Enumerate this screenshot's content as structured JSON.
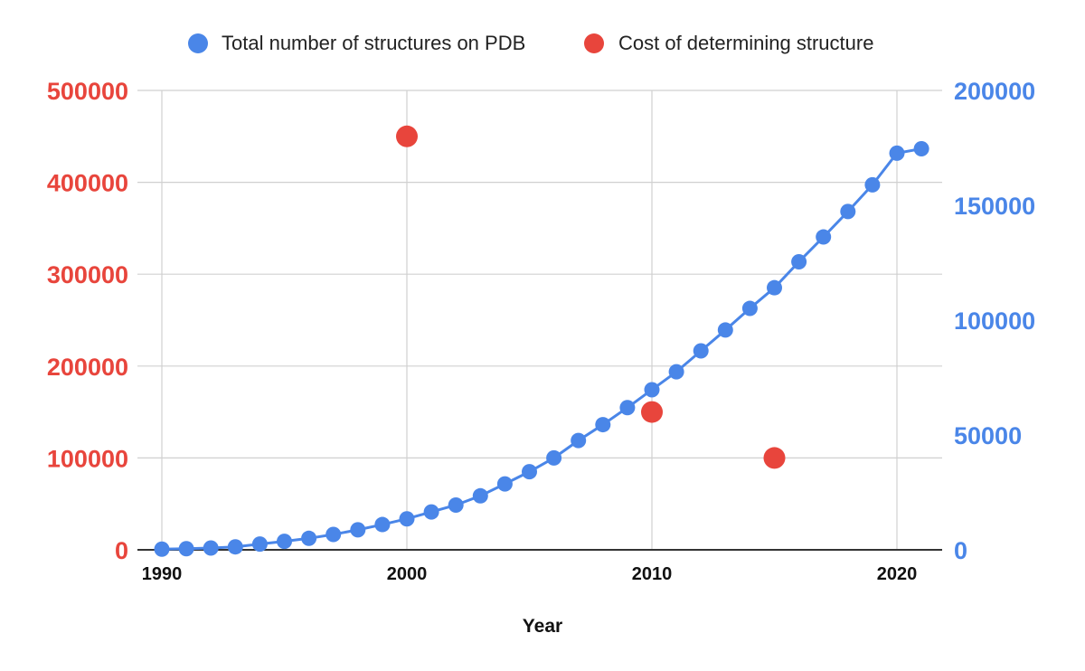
{
  "chart_data": {
    "type": "scatter",
    "xlabel": "Year",
    "legend_position": "top",
    "grid": true,
    "x_axis": {
      "range": [
        1990,
        2022
      ],
      "ticks": [
        "1990",
        "2000",
        "2010",
        "2020"
      ],
      "tick_values": [
        1990,
        2000,
        2010,
        2020
      ]
    },
    "y_axis_left": {
      "range": [
        0,
        500000
      ],
      "ticks": [
        "0",
        "100000",
        "200000",
        "300000",
        "400000",
        "500000"
      ],
      "tick_values": [
        0,
        100000,
        200000,
        300000,
        400000,
        500000
      ],
      "color": "#e8453c"
    },
    "y_axis_right": {
      "range": [
        0,
        200000
      ],
      "ticks": [
        "0",
        "50000",
        "100000",
        "150000",
        "200000"
      ],
      "tick_values": [
        0,
        50000,
        100000,
        150000,
        200000
      ],
      "color": "#4a86e8"
    },
    "series": [
      {
        "name": "Total number of structures on PDB",
        "color": "#4a86e8",
        "axis": "right",
        "line": true,
        "x": [
          1990,
          1991,
          1992,
          1993,
          1994,
          1995,
          1996,
          1997,
          1998,
          1999,
          2000,
          2001,
          2002,
          2003,
          2004,
          2005,
          2006,
          2007,
          2008,
          2009,
          2010,
          2011,
          2012,
          2013,
          2014,
          2015,
          2016,
          2017,
          2018,
          2019,
          2020,
          2021
        ],
        "y": [
          300,
          500,
          800,
          1300,
          2500,
          3700,
          5000,
          6700,
          8700,
          11000,
          13500,
          16500,
          19500,
          23500,
          28700,
          34000,
          40000,
          47600,
          54500,
          61900,
          69700,
          77500,
          86600,
          95700,
          105100,
          114100,
          125400,
          136200,
          147300,
          158900,
          172700,
          174600
        ]
      },
      {
        "name": "Cost of determining structure",
        "color": "#e8453c",
        "axis": "left",
        "line": false,
        "x": [
          2000,
          2010,
          2015
        ],
        "y": [
          450000,
          150000,
          100000
        ]
      }
    ]
  }
}
